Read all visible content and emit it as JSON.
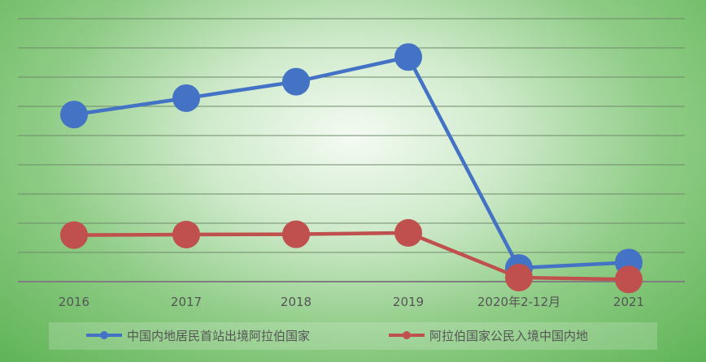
{
  "chart_data": {
    "type": "line",
    "categories": [
      "2016",
      "2017",
      "2018",
      "2019",
      "2020年2-12月",
      "2021"
    ],
    "series": [
      {
        "name": "中国内地居民首站出境阿拉伯国家",
        "color": "#4472c4",
        "values": [
          61,
          67,
          73,
          82,
          5,
          7
        ]
      },
      {
        "name": "阿拉伯国家公民入境中国内地",
        "color": "#c0504d",
        "values": [
          17,
          17.2,
          17.3,
          17.8,
          1.5,
          0.8
        ]
      }
    ],
    "ylim": [
      0,
      96
    ],
    "grid": true,
    "legend_position": "bottom",
    "title": "",
    "xlabel": "",
    "ylabel": ""
  }
}
